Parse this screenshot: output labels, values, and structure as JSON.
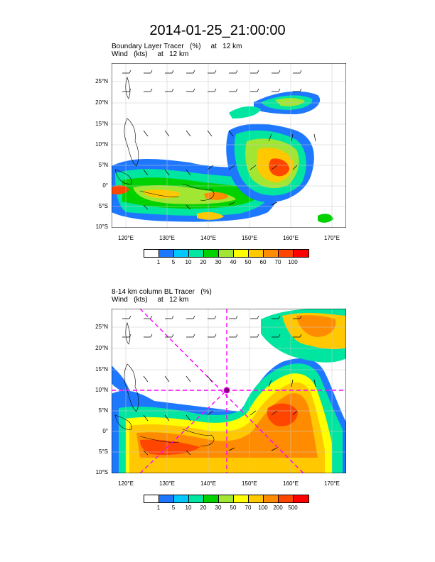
{
  "title": "2014-01-25_21:00:00",
  "panel1": {
    "subtitle_line1": "Boundary Layer Tracer   (%)     at   12 km",
    "subtitle_line2": "Wind   (kts)     at   12 km",
    "lat_labels": [
      "25°N",
      "20°N",
      "15°N",
      "10°N",
      "5°N",
      "0°",
      "5°S",
      "10°S"
    ],
    "lon_labels": [
      "120°E",
      "130°E",
      "140°E",
      "150°E",
      "160°E",
      "170°E"
    ],
    "colorbar": {
      "colors": [
        "#ffffff",
        "#1e78ff",
        "#00c8ff",
        "#00e6a0",
        "#00d200",
        "#a0e632",
        "#ffff00",
        "#ffc800",
        "#ff8c00",
        "#ff4600",
        "#ff0000"
      ],
      "labels": [
        "1",
        "5",
        "10",
        "20",
        "30",
        "40",
        "50",
        "60",
        "70",
        "100"
      ]
    }
  },
  "panel2": {
    "subtitle_line1": "8-14 km column BL Tracer   (%)",
    "subtitle_line2": "Wind   (kts)     at   12 km",
    "lat_labels": [
      "25°N",
      "20°N",
      "15°N",
      "10°N",
      "5°N",
      "0°",
      "5°S",
      "10°S"
    ],
    "lon_labels": [
      "120°E",
      "130°E",
      "140°E",
      "150°E",
      "160°E",
      "170°E"
    ],
    "colorbar": {
      "colors": [
        "#ffffff",
        "#1e78ff",
        "#00c8ff",
        "#00e6a0",
        "#00d200",
        "#a0e632",
        "#ffff00",
        "#ffc800",
        "#ff8c00",
        "#ff4600",
        "#ff0000"
      ],
      "labels": [
        "1",
        "5",
        "10",
        "20",
        "30",
        "50",
        "70",
        "100",
        "200",
        "500"
      ]
    },
    "marker_color": "#ff00ff"
  }
}
